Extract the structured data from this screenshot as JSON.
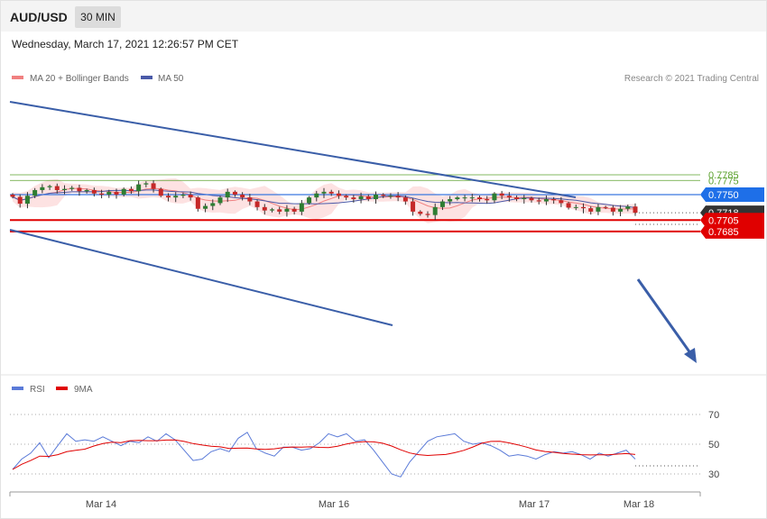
{
  "header": {
    "symbol": "AUD/USD",
    "timeframe": "30 MIN",
    "datetime": "Wednesday, March 17, 2021 12:26:57 PM CET"
  },
  "legend": {
    "bb_label": "MA 20 + Bollinger Bands",
    "ma50_label": "MA 50",
    "credit": "Research © 2021 Trading Central",
    "rsi_label": "RSI",
    "ma9_label": "9MA"
  },
  "colors": {
    "up_candle": "#2e7d32",
    "down_candle": "#c62828",
    "bb_fill": "#fde2e2",
    "ma20": "#f08080",
    "ma50": "#4a5aa8",
    "channel": "#3a5ea8",
    "resistance": "#5aa02c",
    "pivot": "#3a78e0",
    "support": "#e00000",
    "current_price": "#333333",
    "rsi": "#5a7ad8",
    "rsi_ma": "#e00000"
  },
  "chart_data": [
    {
      "type": "candlestick",
      "title": "AUD/USD",
      "timeframe": "30 MIN",
      "x_tick_labels": [
        "Mar 14",
        "Mar 16",
        "Mar 17",
        "Mar 18"
      ],
      "ylim": [
        0.7682,
        0.7795
      ],
      "levels": [
        {
          "value": 0.7785,
          "label": "0.7785",
          "kind": "resistance"
        },
        {
          "value": 0.7775,
          "label": "0.7775",
          "kind": "resistance"
        },
        {
          "value": 0.775,
          "label": "0.7750",
          "kind": "pivot"
        },
        {
          "value": 0.7718,
          "label": "0.7718",
          "kind": "current"
        },
        {
          "value": 0.7705,
          "label": "0.7705",
          "kind": "support"
        },
        {
          "value": 0.7685,
          "label": "0.7685",
          "kind": "support"
        }
      ],
      "close_series": [
        0.7746,
        0.7734,
        0.7748,
        0.7758,
        0.7763,
        0.7765,
        0.7758,
        0.776,
        0.7762,
        0.7756,
        0.7758,
        0.7752,
        0.775,
        0.7755,
        0.775,
        0.776,
        0.7756,
        0.7768,
        0.777,
        0.776,
        0.7748,
        0.7745,
        0.7748,
        0.775,
        0.7745,
        0.7725,
        0.773,
        0.7735,
        0.7745,
        0.7755,
        0.775,
        0.7745,
        0.7738,
        0.7728,
        0.7722,
        0.7724,
        0.772,
        0.7725,
        0.772,
        0.7735,
        0.7745,
        0.7752,
        0.7755,
        0.7752,
        0.7748,
        0.7745,
        0.7742,
        0.7747,
        0.7742,
        0.775,
        0.7748,
        0.7748,
        0.7745,
        0.7738,
        0.772,
        0.7716,
        0.7714,
        0.7728,
        0.7738,
        0.7742,
        0.7745,
        0.7745,
        0.7745,
        0.7742,
        0.774,
        0.7752,
        0.7748,
        0.7745,
        0.7742,
        0.7744,
        0.774,
        0.7738,
        0.7742,
        0.774,
        0.7735,
        0.7727,
        0.7728,
        0.7726,
        0.772,
        0.7728,
        0.7727,
        0.772,
        0.7725,
        0.7729,
        0.7718
      ],
      "rsi_ticks": [
        30,
        50,
        70
      ],
      "rsi_series": [
        33,
        40,
        44,
        51,
        41,
        49,
        57,
        52,
        53,
        52,
        55,
        52,
        49,
        52,
        51,
        55,
        52,
        57,
        53,
        46,
        39,
        40,
        45,
        47,
        45,
        54,
        58,
        47,
        44,
        42,
        48,
        48,
        46,
        47,
        51,
        57,
        55,
        57,
        52,
        53,
        46,
        38,
        30,
        28,
        38,
        45,
        52,
        55,
        56,
        57,
        52,
        50,
        51,
        49,
        46,
        42,
        43,
        42,
        40,
        43,
        45,
        44,
        45,
        43,
        40,
        44,
        42,
        44,
        46,
        40
      ]
    }
  ]
}
